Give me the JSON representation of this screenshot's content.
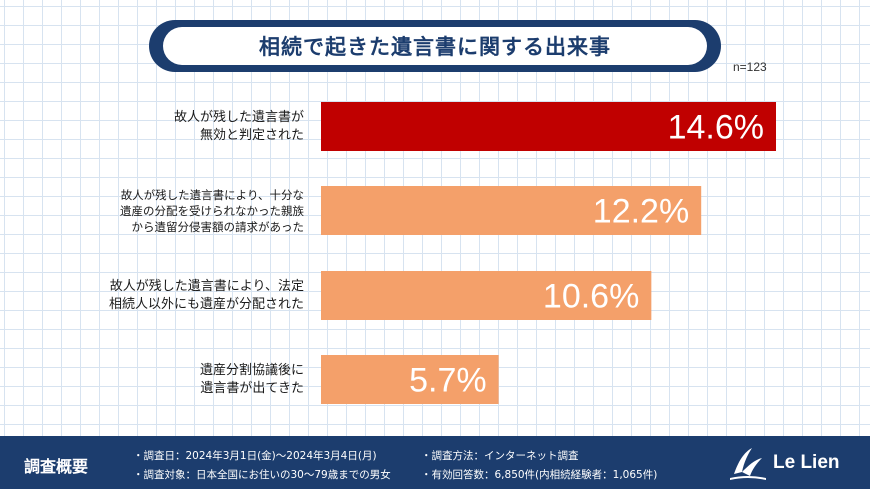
{
  "title": "相続で起きた遺言書に関する出来事",
  "sample_size": "n=123",
  "colors": {
    "highlight": "#c00000",
    "bar": "#f4a06a",
    "navy": "#1c3d6e"
  },
  "chart_data": {
    "type": "bar",
    "orientation": "horizontal",
    "categories": [
      "故人が残した遺言書が無効と判定された",
      "故人が残した遺言書により、十分な遺産の分配を受けられなかった親族から遺留分侵害額の請求があった",
      "故人が残した遺言書により、法定相続人以外にも遺産が分配された",
      "遺産分割協議後に遺言書が出てきた"
    ],
    "category_lines": [
      [
        "故人が残した遺言書が",
        "無効と判定された"
      ],
      [
        "故人が残した遺言書により、十分な",
        "遺産の分配を受けられなかった親族",
        "から遺留分侵害額の請求があった"
      ],
      [
        "故人が残した遺言書により、法定",
        "相続人以外にも遺産が分配された"
      ],
      [
        "遺産分割協議後に",
        "遺言書が出てきた"
      ]
    ],
    "values": [
      14.6,
      12.2,
      10.6,
      5.7
    ],
    "value_labels": [
      "14.6%",
      "12.2%",
      "10.6%",
      "5.7%"
    ],
    "unit": "%",
    "xlim": [
      0,
      15
    ],
    "grid": true,
    "legend": "none"
  },
  "footer": {
    "title": "調査概要",
    "items": [
      "・調査日：2024年3月1日(金)～2024年3月4日(月)",
      "・調査方法：インターネット調査",
      "・調査対象：日本全国にお住いの30～79歳までの男女",
      "・有効回答数：6,850件(内相続経験者：1,065件)"
    ]
  },
  "logo": {
    "text": "Le Lien",
    "icon": "le-lien-logo-icon"
  }
}
